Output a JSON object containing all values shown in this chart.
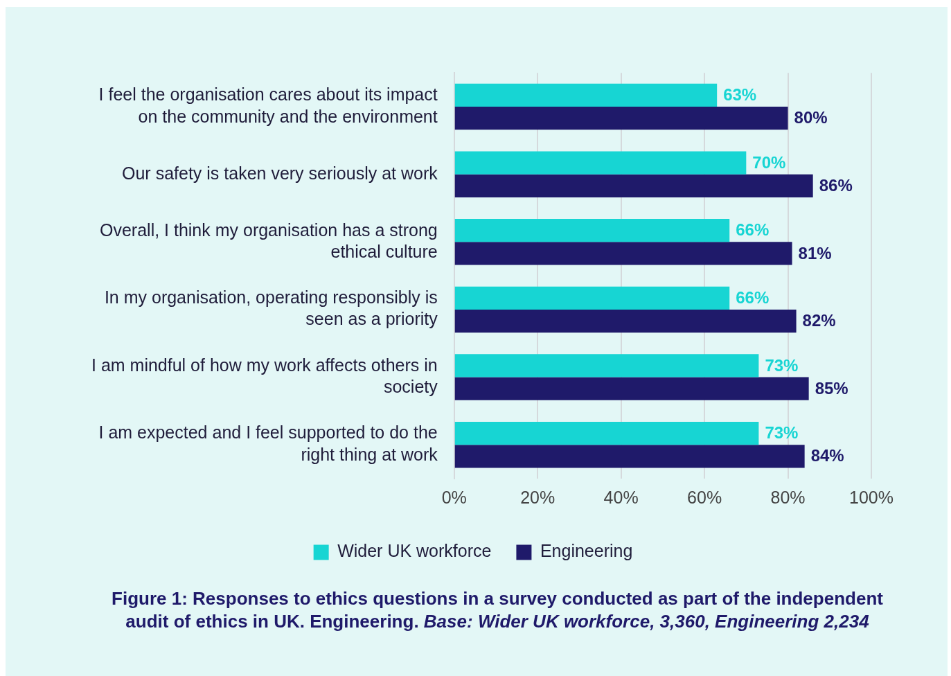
{
  "chart_data": {
    "type": "bar",
    "orientation": "horizontal",
    "categories": [
      "I feel the organisation cares about its impact on the community and the environment",
      "Our safety is taken very seriously at work",
      "Overall, I think my organisation has a strong ethical culture",
      "In my organisation, operating responsibly is seen as a priority",
      "I am mindful of how my work affects others in society",
      "I am expected and I feel supported to do the right thing at work"
    ],
    "series": [
      {
        "name": "Wider UK workforce",
        "color": "#17d5d3",
        "values": [
          63,
          70,
          66,
          66,
          73,
          73
        ],
        "value_labels": [
          "63%",
          "70%",
          "66%",
          "66%",
          "73%",
          "73%"
        ]
      },
      {
        "name": "Engineering",
        "color": "#1f1a6a",
        "values": [
          80,
          86,
          81,
          82,
          85,
          84
        ],
        "value_labels": [
          "80%",
          "86%",
          "81%",
          "82%",
          "85%",
          "84%"
        ]
      }
    ],
    "xlim": [
      0,
      100
    ],
    "xticks": [
      {
        "value": 0,
        "label": "0%"
      },
      {
        "value": 20,
        "label": "20%"
      },
      {
        "value": 40,
        "label": "40%"
      },
      {
        "value": 60,
        "label": "60%"
      },
      {
        "value": 80,
        "label": "80%"
      },
      {
        "value": 100,
        "label": "100%"
      }
    ],
    "grid": "x",
    "legend": "bottom",
    "annotations": [
      "Figure 1: Responses to ethics questions in a survey conducted as part of the independent audit of ethics in UK. Engineering.",
      "Base: Wider UK workforce, 3,360, Engineering 2,234"
    ]
  }
}
